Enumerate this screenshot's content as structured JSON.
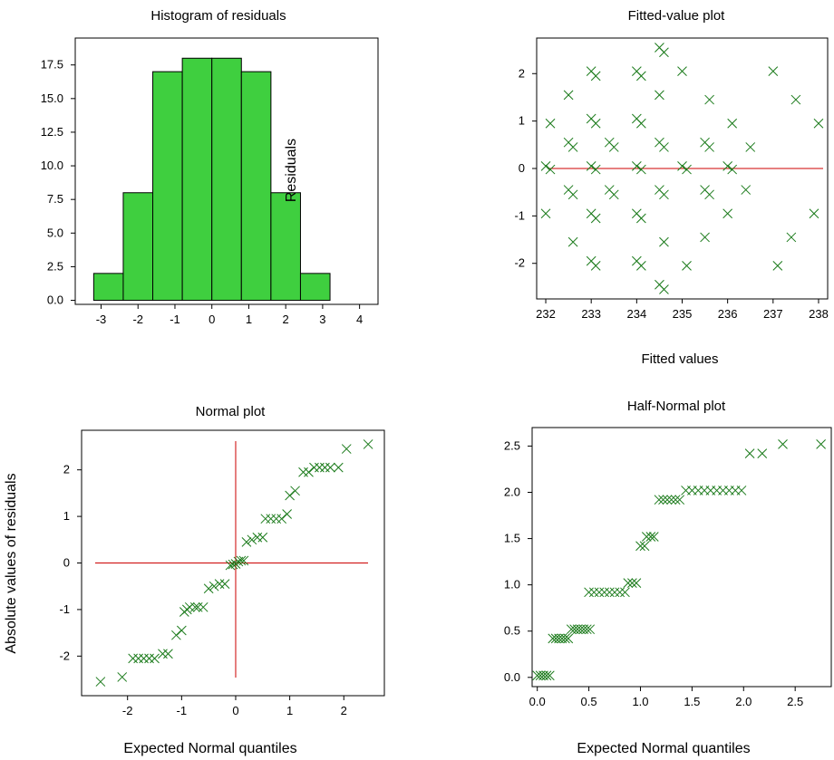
{
  "colors": {
    "marker": "#1a7a1a",
    "refline": "#cc0000",
    "bar_fill": "#3fcf3f",
    "frame": "#000000"
  },
  "chart_data": [
    {
      "id": "hist",
      "type": "bar",
      "title": "Histogram of residuals",
      "overlay_label": "Residuals",
      "bins": [
        {
          "x0": -3.2,
          "x1": -2.4,
          "value": 2
        },
        {
          "x0": -2.4,
          "x1": -1.6,
          "value": 8
        },
        {
          "x0": -1.6,
          "x1": -0.8,
          "value": 17
        },
        {
          "x0": -0.8,
          "x1": 0.0,
          "value": 18
        },
        {
          "x0": 0.0,
          "x1": 0.8,
          "value": 18
        },
        {
          "x0": 0.8,
          "x1": 1.6,
          "value": 17
        },
        {
          "x0": 1.6,
          "x1": 2.4,
          "value": 8
        },
        {
          "x0": 2.4,
          "x1": 3.2,
          "value": 2
        }
      ],
      "xlim": [
        -3.7,
        4.5
      ],
      "ylim": [
        -0.3,
        19.5
      ],
      "xticks": [
        -3,
        -2,
        -1,
        0,
        1,
        2,
        3,
        4
      ],
      "yticks": [
        "0.0",
        "2.5",
        "5.0",
        "7.5",
        "10.0",
        "12.5",
        "15.0",
        "17.5"
      ],
      "grid": false
    },
    {
      "id": "fitted",
      "type": "scatter",
      "title": "Fitted-value plot",
      "xlabel": "Fitted values",
      "xlim": [
        231.8,
        238.2
      ],
      "ylim": [
        -2.75,
        2.75
      ],
      "xticks": [
        "232",
        "233",
        "234",
        "235",
        "236",
        "237",
        "238"
      ],
      "yticks": [
        "-2",
        "-1",
        "0",
        "1",
        "2"
      ],
      "hline": 0,
      "grid": false,
      "points": [
        [
          232.0,
          0.05
        ],
        [
          232.1,
          -0.02
        ],
        [
          232.0,
          -0.95
        ],
        [
          232.1,
          0.95
        ],
        [
          232.5,
          1.55
        ],
        [
          232.5,
          0.55
        ],
        [
          232.6,
          0.45
        ],
        [
          232.5,
          -0.45
        ],
        [
          232.6,
          -0.55
        ],
        [
          232.6,
          -1.55
        ],
        [
          233.0,
          2.05
        ],
        [
          233.1,
          1.95
        ],
        [
          233.0,
          1.05
        ],
        [
          233.1,
          0.95
        ],
        [
          233.0,
          0.05
        ],
        [
          233.1,
          -0.02
        ],
        [
          233.0,
          -0.95
        ],
        [
          233.1,
          -1.05
        ],
        [
          233.0,
          -1.95
        ],
        [
          233.1,
          -2.05
        ],
        [
          233.4,
          0.55
        ],
        [
          233.5,
          0.45
        ],
        [
          233.4,
          -0.45
        ],
        [
          233.5,
          -0.55
        ],
        [
          234.0,
          2.05
        ],
        [
          234.1,
          1.95
        ],
        [
          234.0,
          1.05
        ],
        [
          234.1,
          0.95
        ],
        [
          234.0,
          0.05
        ],
        [
          234.1,
          -0.02
        ],
        [
          234.0,
          -0.95
        ],
        [
          234.1,
          -1.05
        ],
        [
          234.0,
          -1.95
        ],
        [
          234.1,
          -2.05
        ],
        [
          234.5,
          2.55
        ],
        [
          234.6,
          2.45
        ],
        [
          234.5,
          1.55
        ],
        [
          234.5,
          0.55
        ],
        [
          234.6,
          0.45
        ],
        [
          234.5,
          -0.45
        ],
        [
          234.6,
          -0.55
        ],
        [
          234.6,
          -1.55
        ],
        [
          234.5,
          -2.45
        ],
        [
          234.6,
          -2.55
        ],
        [
          235.0,
          2.05
        ],
        [
          235.0,
          0.05
        ],
        [
          235.1,
          -0.02
        ],
        [
          235.1,
          -2.05
        ],
        [
          235.5,
          0.55
        ],
        [
          235.6,
          0.45
        ],
        [
          235.5,
          -0.45
        ],
        [
          235.6,
          -0.55
        ],
        [
          235.5,
          -1.45
        ],
        [
          235.6,
          1.45
        ],
        [
          236.0,
          0.05
        ],
        [
          236.1,
          -0.02
        ],
        [
          236.1,
          0.95
        ],
        [
          236.0,
          -0.95
        ],
        [
          236.5,
          0.45
        ],
        [
          236.4,
          -0.45
        ],
        [
          237.0,
          2.05
        ],
        [
          237.1,
          -2.05
        ],
        [
          237.4,
          -1.45
        ],
        [
          237.5,
          1.45
        ],
        [
          238.0,
          0.95
        ],
        [
          237.9,
          -0.95
        ]
      ]
    },
    {
      "id": "normal",
      "type": "scatter",
      "title": "Normal plot",
      "xlabel": "Expected Normal quantiles",
      "ylabel": "Absolute values of residuals",
      "xlim": [
        -2.85,
        2.75
      ],
      "ylim": [
        -2.85,
        2.85
      ],
      "xticks": [
        "-2",
        "-1",
        "0",
        "1",
        "2"
      ],
      "yticks": [
        "-2",
        "-1",
        "0",
        "1",
        "2"
      ],
      "hline": 0,
      "vline": 0,
      "grid": false,
      "points": [
        [
          -2.5,
          -2.55
        ],
        [
          -2.5,
          -2.55
        ],
        [
          -2.5,
          -2.55
        ],
        [
          -2.5,
          -2.55
        ],
        [
          -2.5,
          -2.55
        ],
        [
          -2.5,
          -2.55
        ],
        [
          -2.5,
          -2.55
        ],
        [
          -2.5,
          -2.55
        ],
        [
          -2.5,
          -2.55
        ],
        [
          -2.5,
          -2.55
        ],
        [
          -2.5,
          -2.55
        ],
        [
          -2.5,
          -2.55
        ],
        [
          -2.5,
          -2.55
        ],
        [
          -2.5,
          -2.55
        ],
        [
          -2.5,
          -2.55
        ],
        [
          -2.5,
          -2.55
        ],
        [
          -2.5,
          -2.55
        ],
        [
          -2.5,
          -2.55
        ],
        [
          -2.5,
          -2.55
        ],
        [
          -2.5,
          -2.55
        ],
        [
          -2.5,
          -2.55
        ],
        [
          -2.5,
          -2.55
        ],
        [
          -2.5,
          -2.55
        ],
        [
          -2.5,
          -2.55
        ]
      ]
    },
    {
      "id": "halfnormal",
      "type": "scatter",
      "title": "Half-Normal plot",
      "xlabel": "Expected Normal quantiles",
      "xlim": [
        -0.05,
        2.85
      ],
      "ylim": [
        -0.1,
        2.7
      ],
      "xticks": [
        "0.0",
        "0.5",
        "1.0",
        "1.5",
        "2.0",
        "2.5"
      ],
      "yticks": [
        "0.0",
        "0.5",
        "1.0",
        "1.5",
        "2.0",
        "2.5"
      ],
      "grid": false,
      "points": []
    }
  ]
}
